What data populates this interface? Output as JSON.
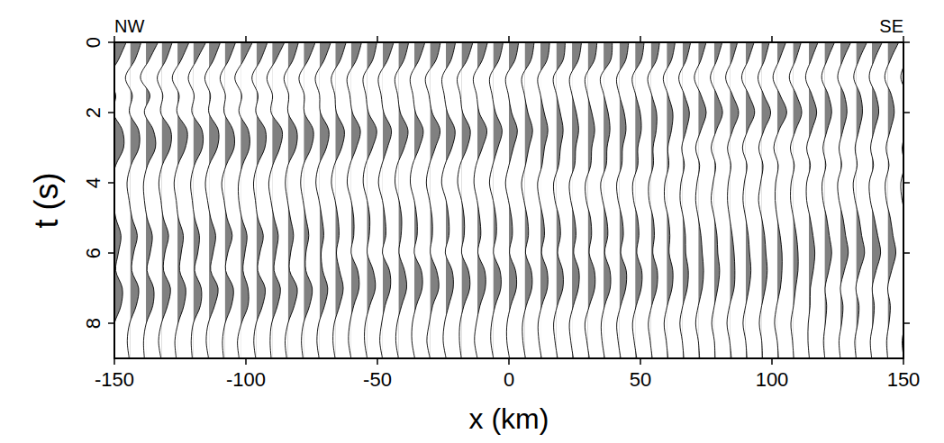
{
  "chart_data": {
    "type": "wiggle",
    "annotations": [
      "NW",
      "SE"
    ],
    "x_label": "x (km)",
    "y_label": "t (s)",
    "xlim": [
      -150,
      150
    ],
    "ylim": [
      0,
      9
    ],
    "xticks": [
      -150,
      -100,
      -50,
      0,
      50,
      100,
      150
    ],
    "yticks": [
      0,
      2,
      4,
      6,
      8
    ],
    "color": "#808080",
    "t": [
      0,
      0.5,
      1,
      1.5,
      2,
      2.5,
      3,
      3.5,
      4,
      4.5,
      5,
      5.5,
      6,
      6.5,
      7,
      7.5,
      8,
      8.5,
      9
    ],
    "x": [
      -150,
      -144,
      -138,
      -132,
      -126,
      -120,
      -114,
      -108,
      -102,
      -96,
      -90,
      -84,
      -78,
      -72,
      -66,
      -60,
      -54,
      -48,
      -42,
      -36,
      -30,
      -24,
      -18,
      -12,
      -6,
      0,
      6,
      12,
      18,
      24,
      30,
      36,
      42,
      48,
      54,
      60,
      66,
      72,
      78,
      84,
      90,
      96,
      102,
      108,
      114,
      120,
      126,
      132,
      138,
      144,
      150
    ],
    "values": [
      [
        4.5,
        1.5,
        -2,
        0.5,
        -0.5,
        3,
        3.5,
        0.5,
        -1,
        -0.5,
        0.5,
        2.5,
        1.5,
        0.5,
        3,
        2.5,
        0,
        -1,
        -0.5
      ],
      [
        4.2,
        1.8,
        -1.8,
        0.8,
        -0.3,
        3.2,
        3.3,
        0.3,
        -1.2,
        -0.4,
        0.7,
        2.7,
        1.3,
        0.6,
        3.2,
        2.3,
        -0.2,
        -1.1,
        -0.4
      ],
      [
        4.6,
        1.2,
        -2.1,
        1.5,
        -0.6,
        2.8,
        3.6,
        0.6,
        -0.9,
        -0.6,
        0.4,
        2.4,
        1.6,
        0.4,
        2.9,
        2.6,
        0.1,
        -0.9,
        -0.6
      ],
      [
        4.0,
        1.6,
        -1.7,
        0.4,
        -0.4,
        3.4,
        3.2,
        0.2,
        -1.1,
        -0.3,
        0.6,
        2.6,
        1.2,
        0.7,
        3.3,
        2.2,
        -0.1,
        -1.2,
        -0.3
      ],
      [
        4.4,
        1.4,
        -2.0,
        0.6,
        -0.2,
        3.6,
        3.0,
        0.1,
        -1.3,
        -0.5,
        0.3,
        2.2,
        1.4,
        0.8,
        3.1,
        2.4,
        0.2,
        -1.0,
        -0.5
      ],
      [
        4.8,
        1.3,
        -1.9,
        0.3,
        -0.5,
        3.3,
        3.4,
        0.4,
        -1.0,
        -0.4,
        0.5,
        2.3,
        1.7,
        0.5,
        3.0,
        2.7,
        0.0,
        -0.8,
        -0.4
      ],
      [
        4.3,
        1.7,
        -1.6,
        0.5,
        -0.1,
        3.5,
        3.1,
        0.0,
        -1.4,
        -0.6,
        0.6,
        2.5,
        1.5,
        0.6,
        3.4,
        2.1,
        -0.3,
        -1.1,
        -0.2
      ],
      [
        4.1,
        1.5,
        -1.8,
        0.2,
        -0.3,
        3.1,
        3.5,
        0.5,
        -1.2,
        -0.3,
        0.8,
        2.8,
        1.1,
        0.3,
        3.2,
        2.5,
        0.1,
        -0.9,
        -0.5
      ],
      [
        4.5,
        1.2,
        -2.2,
        0.4,
        -0.6,
        2.9,
        3.3,
        0.7,
        -0.8,
        -0.7,
        0.4,
        2.4,
        1.6,
        0.9,
        2.8,
        2.8,
        0.3,
        -1.2,
        -0.6
      ],
      [
        4.2,
        1.6,
        -1.7,
        0.6,
        -0.2,
        3.4,
        3.2,
        0.3,
        -1.1,
        -0.4,
        0.5,
        2.6,
        1.3,
        0.5,
        3.3,
        2.3,
        -0.1,
        -1.0,
        -0.3
      ],
      [
        4.7,
        1.4,
        -2.0,
        0.1,
        -0.4,
        3.7,
        2.9,
        0.2,
        -1.3,
        -0.5,
        0.7,
        2.3,
        1.4,
        0.7,
        3.1,
        2.0,
        -0.2,
        -0.8,
        -0.4
      ],
      [
        4.0,
        1.9,
        -1.5,
        0.3,
        0.0,
        3.3,
        3.0,
        0.0,
        -1.0,
        -0.2,
        0.9,
        2.1,
        1.0,
        0.6,
        3.5,
        2.4,
        0.0,
        -1.1,
        -0.5
      ],
      [
        4.4,
        1.7,
        -1.8,
        0.2,
        0.2,
        3.6,
        2.8,
        -0.2,
        -1.2,
        -0.3,
        0.8,
        1.9,
        0.8,
        0.8,
        3.2,
        2.2,
        -0.1,
        -0.9,
        -0.3
      ],
      [
        4.3,
        1.8,
        -1.6,
        0.0,
        0.3,
        3.5,
        2.6,
        -0.3,
        -1.4,
        -0.2,
        0.9,
        1.6,
        0.6,
        1.2,
        3.1,
        1.9,
        -0.3,
        -1.0,
        -0.2
      ],
      [
        4.1,
        1.9,
        -1.5,
        -0.2,
        0.4,
        3.4,
        2.4,
        -0.4,
        -1.5,
        -0.1,
        1.0,
        1.4,
        0.4,
        1.6,
        3.0,
        1.6,
        -0.4,
        -0.9,
        -0.1
      ],
      [
        4.0,
        2.0,
        -1.5,
        -0.5,
        0.5,
        3.5,
        2.0,
        -0.5,
        -1.5,
        0.0,
        1.0,
        1.0,
        0.0,
        2.5,
        3.0,
        1.0,
        -0.5,
        -1.0,
        0.0
      ],
      [
        3.8,
        2.2,
        -1.4,
        -0.4,
        0.6,
        3.7,
        2.1,
        -0.6,
        -1.4,
        0.1,
        1.1,
        0.9,
        0.1,
        2.4,
        3.2,
        1.1,
        -0.6,
        -0.9,
        0.1
      ],
      [
        4.2,
        1.9,
        -1.6,
        -0.6,
        0.4,
        3.3,
        1.8,
        -0.4,
        -1.6,
        -0.1,
        0.9,
        1.2,
        -0.1,
        2.6,
        2.9,
        0.9,
        -0.4,
        -1.1,
        -0.1
      ],
      [
        3.9,
        2.1,
        -1.3,
        -0.3,
        0.7,
        3.6,
        2.2,
        -0.5,
        -1.3,
        0.2,
        1.2,
        1.0,
        0.2,
        2.3,
        3.1,
        1.2,
        -0.5,
        -1.0,
        0.0
      ],
      [
        4.1,
        1.8,
        -1.5,
        -0.5,
        0.5,
        3.4,
        1.9,
        -0.7,
        -1.5,
        0.0,
        1.0,
        1.1,
        0.0,
        2.7,
        3.0,
        0.8,
        -0.7,
        -0.9,
        0.2
      ],
      [
        4.0,
        2.3,
        -1.7,
        -0.4,
        0.8,
        3.8,
        2.0,
        -0.3,
        -1.4,
        -0.2,
        0.8,
        0.9,
        0.1,
        2.5,
        3.3,
        1.0,
        -0.3,
        -1.2,
        0.0
      ],
      [
        3.7,
        2.0,
        -1.4,
        -0.6,
        0.6,
        3.5,
        2.3,
        -0.4,
        -1.6,
        0.1,
        1.1,
        1.2,
        -0.2,
        2.4,
        2.8,
        1.1,
        -0.5,
        -1.0,
        0.1
      ],
      [
        4.3,
        2.1,
        -1.6,
        -0.5,
        0.4,
        3.3,
        2.1,
        -0.6,
        -1.5,
        0.0,
        1.0,
        1.0,
        0.0,
        2.6,
        3.1,
        0.9,
        -0.6,
        -0.8,
        -0.1
      ],
      [
        3.9,
        1.9,
        -1.5,
        -0.3,
        0.7,
        3.6,
        1.9,
        -0.5,
        -1.3,
        -0.1,
        0.9,
        1.3,
        0.2,
        2.8,
        3.0,
        1.0,
        -0.4,
        -1.1,
        0.0
      ],
      [
        3.8,
        2.2,
        -1.3,
        -0.4,
        0.9,
        3.4,
        1.8,
        -0.2,
        -1.4,
        0.0,
        1.1,
        1.2,
        0.1,
        2.6,
        2.9,
        0.8,
        -0.6,
        -0.9,
        0.1
      ],
      [
        3.7,
        2.3,
        -1.2,
        -0.2,
        1.0,
        3.2,
        1.7,
        0.0,
        -1.3,
        -0.2,
        1.0,
        1.3,
        0.2,
        2.5,
        2.8,
        0.7,
        -0.7,
        -0.8,
        0.2
      ],
      [
        3.6,
        2.4,
        -1.1,
        -0.1,
        1.2,
        3.0,
        1.6,
        0.3,
        -1.2,
        -0.3,
        1.0,
        1.4,
        0.3,
        2.5,
        2.7,
        0.6,
        -0.8,
        -0.7,
        0.3
      ],
      [
        3.5,
        2.5,
        -1.0,
        0.0,
        1.4,
        2.8,
        1.5,
        0.6,
        -1.1,
        -0.4,
        1.0,
        1.5,
        0.4,
        2.5,
        2.6,
        0.5,
        -0.9,
        -0.6,
        0.4
      ],
      [
        3.4,
        2.6,
        -1.1,
        0.1,
        1.5,
        2.6,
        1.6,
        0.9,
        -1.0,
        -0.5,
        1.1,
        1.6,
        0.5,
        2.4,
        2.5,
        0.4,
        -1.0,
        -0.5,
        0.5
      ],
      [
        3.6,
        2.4,
        -0.9,
        0.0,
        1.6,
        2.5,
        1.4,
        1.0,
        -1.0,
        -0.5,
        0.9,
        1.5,
        0.6,
        2.6,
        2.4,
        0.5,
        -1.0,
        -0.5,
        0.5
      ],
      [
        3.5,
        2.5,
        -1.0,
        -0.1,
        1.5,
        2.6,
        1.5,
        1.1,
        -0.9,
        -0.6,
        1.0,
        1.4,
        0.5,
        2.5,
        2.6,
        0.6,
        -1.1,
        -0.4,
        0.6
      ],
      [
        3.3,
        2.7,
        -1.2,
        0.1,
        1.7,
        2.4,
        1.3,
        1.0,
        -1.1,
        -0.4,
        1.1,
        1.6,
        0.4,
        2.4,
        2.5,
        0.4,
        -0.9,
        -0.6,
        0.4
      ],
      [
        3.5,
        2.4,
        -1.0,
        0.0,
        1.8,
        2.5,
        1.2,
        0.9,
        -1.0,
        -0.5,
        1.0,
        1.5,
        0.5,
        2.6,
        2.4,
        0.5,
        -1.0,
        -0.5,
        0.5
      ],
      [
        3.4,
        2.3,
        -1.1,
        0.2,
        1.9,
        2.3,
        1.0,
        1.0,
        -0.9,
        -0.6,
        0.9,
        1.4,
        0.6,
        2.5,
        2.3,
        0.4,
        -1.0,
        -0.4,
        0.6
      ],
      [
        3.3,
        2.1,
        -1.2,
        0.3,
        2.1,
        2.0,
        0.8,
        0.9,
        -0.8,
        -0.7,
        0.8,
        1.3,
        0.7,
        2.4,
        2.2,
        0.3,
        -1.0,
        -0.3,
        0.5
      ],
      [
        3.2,
        1.8,
        -1.3,
        0.5,
        2.3,
        1.8,
        0.4,
        0.8,
        -0.7,
        -0.8,
        0.6,
        1.2,
        0.9,
        2.3,
        2.0,
        0.2,
        -1.0,
        -0.2,
        0.5
      ],
      [
        3.1,
        1.4,
        -1.4,
        0.7,
        2.6,
        1.4,
        -0.3,
        0.7,
        -0.6,
        -0.9,
        0.3,
        1.1,
        1.2,
        2.2,
        1.8,
        0.1,
        -1.0,
        -0.1,
        0.5
      ],
      [
        3.0,
        1.0,
        -1.5,
        1.0,
        3.0,
        1.0,
        -1.0,
        0.5,
        -0.5,
        -1.0,
        0.0,
        1.0,
        1.5,
        2.0,
        1.5,
        0.0,
        -1.0,
        0.0,
        0.5
      ],
      [
        3.1,
        1.1,
        -1.4,
        1.1,
        3.2,
        0.9,
        -1.1,
        0.6,
        -0.4,
        -1.1,
        0.1,
        1.1,
        1.4,
        2.1,
        1.4,
        0.1,
        -0.9,
        0.1,
        0.4
      ],
      [
        2.9,
        0.9,
        -1.6,
        1.0,
        3.3,
        1.1,
        -0.9,
        0.4,
        -0.6,
        -0.9,
        -0.1,
        0.9,
        1.6,
        1.9,
        1.6,
        -0.1,
        -1.1,
        -0.1,
        0.6
      ],
      [
        3.2,
        1.0,
        -1.5,
        1.2,
        3.4,
        0.8,
        -1.2,
        0.5,
        -0.5,
        -1.0,
        0.0,
        1.0,
        1.5,
        2.0,
        1.3,
        0.0,
        -1.0,
        0.0,
        0.5
      ],
      [
        3.0,
        1.2,
        -1.3,
        0.9,
        3.5,
        1.0,
        -1.0,
        0.6,
        -0.3,
        -1.1,
        0.1,
        1.2,
        1.7,
        2.2,
        1.5,
        0.1,
        -0.8,
        0.1,
        0.4
      ],
      [
        3.3,
        0.8,
        -1.6,
        1.1,
        3.6,
        0.7,
        -1.3,
        0.4,
        -0.6,
        -0.8,
        0.0,
        1.1,
        1.8,
        1.8,
        1.2,
        -0.2,
        -1.0,
        0.0,
        0.5
      ],
      [
        3.1,
        1.0,
        -1.4,
        1.3,
        3.3,
        1.0,
        -1.0,
        0.5,
        -0.7,
        -0.9,
        0.2,
        1.3,
        1.9,
        1.9,
        1.0,
        0.2,
        -0.8,
        -0.2,
        0.3
      ],
      [
        3.5,
        0.9,
        -1.2,
        1.2,
        3.0,
        1.1,
        -0.8,
        0.6,
        -0.8,
        -0.8,
        0.5,
        1.6,
        2.3,
        1.7,
        0.6,
        0.5,
        -0.2,
        -0.3,
        0.2
      ],
      [
        3.8,
        1.0,
        -1.1,
        1.4,
        2.7,
        1.0,
        -0.6,
        0.5,
        -0.9,
        -0.6,
        0.8,
        1.8,
        2.7,
        1.6,
        0.2,
        0.8,
        0.3,
        -0.4,
        0.1
      ],
      [
        4.0,
        1.0,
        -1.0,
        1.5,
        2.5,
        1.0,
        -0.5,
        0.5,
        -1.0,
        -0.5,
        1.0,
        2.0,
        3.0,
        1.5,
        0.0,
        1.0,
        0.5,
        -0.5,
        0.0
      ],
      [
        4.1,
        1.1,
        -0.9,
        1.6,
        2.4,
        1.1,
        -0.4,
        0.4,
        -1.1,
        -0.4,
        1.1,
        2.1,
        3.2,
        1.4,
        -0.1,
        1.1,
        0.6,
        -0.5,
        0.0
      ],
      [
        3.9,
        0.9,
        -1.0,
        1.5,
        2.6,
        0.9,
        -0.5,
        0.6,
        -1.0,
        -0.6,
        0.9,
        2.2,
        3.3,
        1.6,
        0.1,
        0.9,
        0.4,
        -0.6,
        -0.1
      ],
      [
        4.2,
        1.0,
        -1.1,
        1.4,
        2.5,
        1.0,
        -0.6,
        0.5,
        -0.9,
        -0.5,
        1.0,
        2.0,
        3.1,
        1.5,
        0.0,
        1.0,
        0.5,
        -0.4,
        0.0
      ],
      [
        4.0,
        1.2,
        -1.0,
        1.6,
        2.4,
        1.1,
        -0.5,
        0.4,
        -1.0,
        -0.5,
        1.1,
        1.9,
        3.0,
        1.4,
        0.0,
        0.8,
        0.6,
        -0.5,
        0.1
      ]
    ]
  }
}
